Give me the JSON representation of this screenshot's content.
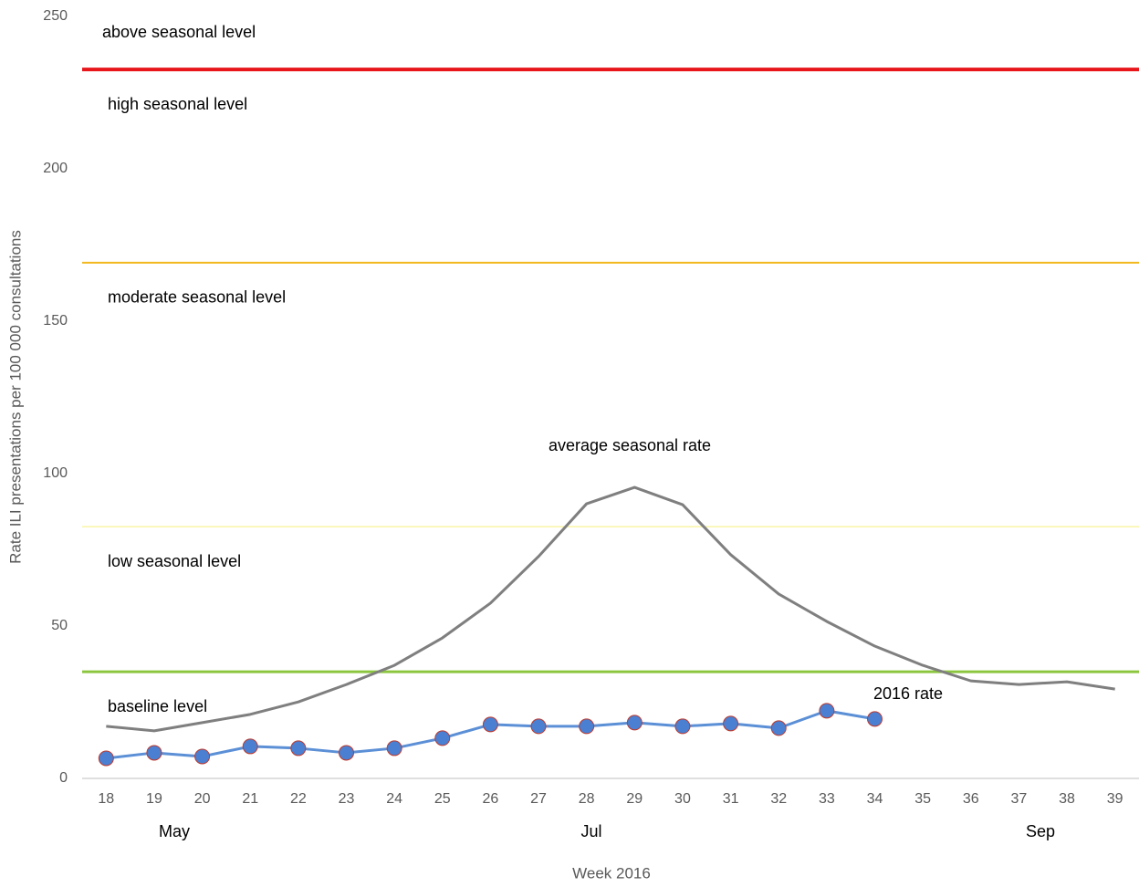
{
  "chart_data": {
    "type": "line",
    "y_axis_label": "Rate ILI presentations per 100 000 consultations",
    "x_axis_label": "Week 2016",
    "categories": [
      "18",
      "19",
      "20",
      "21",
      "22",
      "23",
      "24",
      "25",
      "26",
      "27",
      "28",
      "29",
      "30",
      "31",
      "32",
      "33",
      "34",
      "35",
      "36",
      "37",
      "38",
      "39"
    ],
    "month_labels": [
      "May",
      "Jul",
      "Sep"
    ],
    "ylim": [
      0,
      250
    ],
    "yticks": [
      0,
      50,
      100,
      150,
      200,
      250
    ],
    "levels": [
      {
        "value": 232.6,
        "color": "#e8151b",
        "labels": [
          "above seasonal level",
          "high seasonal level"
        ]
      },
      {
        "value": 169.2,
        "color": "#f2b81e",
        "labels": [
          "moderate seasonal level"
        ]
      },
      {
        "value": 82.6,
        "color": "#f6f07a",
        "labels": [
          "low seasonal level"
        ]
      },
      {
        "value": 35.0,
        "color": "#8cc63f",
        "labels": [
          "baseline level"
        ]
      }
    ],
    "series": [
      {
        "name": "average seasonal rate",
        "color": "#7f7f7f",
        "values": [
          17.1,
          15.6,
          18.3,
          21.0,
          25.1,
          30.8,
          37.1,
          46.1,
          57.5,
          72.8,
          90.1,
          95.5,
          89.8,
          73.4,
          60.5,
          51.5,
          43.4,
          37.1,
          32.0,
          30.8,
          31.7,
          29.3
        ]
      },
      {
        "name": "2016 rate",
        "color": "#5b8fd6",
        "marker_color": "#4a7fd1",
        "marker_edge": "#c0392b",
        "values": [
          6.6,
          8.4,
          7.2,
          10.5,
          9.9,
          8.4,
          9.9,
          13.2,
          17.7,
          17.1,
          17.1,
          18.3,
          17.1,
          18.0,
          16.5,
          22.2,
          19.5,
          null,
          null,
          null,
          null,
          null
        ]
      }
    ]
  }
}
